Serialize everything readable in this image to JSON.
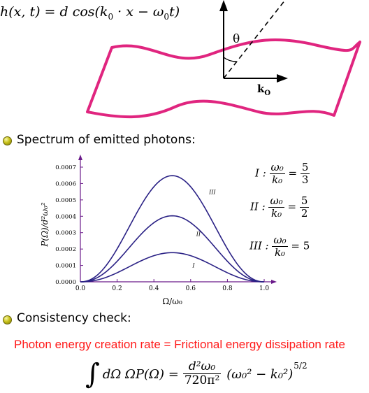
{
  "top_equation": {
    "lhs": "h(x, t) = d cos(k",
    "sub": "0",
    "rest": " · x − ω",
    "sub2": "0",
    "tail": "t)"
  },
  "sheet_diagram": {
    "theta_label": "θ",
    "k0_label": "k",
    "k0_sub": "O",
    "sheet_color": "#e0257f"
  },
  "section1": {
    "label": "Spectrum of emitted photons:"
  },
  "chart_data": {
    "type": "line",
    "xlabel": "Ω/ω₀",
    "ylabel": "P(Ω)/d²ω₀²",
    "xlim": [
      0.0,
      1.0
    ],
    "ylim": [
      0.0,
      0.0007
    ],
    "xticks": [
      "0.0",
      "0.2",
      "0.4",
      "0.6",
      "0.8",
      "1.0"
    ],
    "yticks": [
      "0.0000",
      "0.0001",
      "0.0002",
      "0.0003",
      "0.0004",
      "0.0005",
      "0.0006",
      "0.0007"
    ],
    "series": [
      {
        "name": "I",
        "peak": 0.000178
      },
      {
        "name": "II",
        "peak": 0.000403
      },
      {
        "name": "III",
        "peak": 0.000648
      }
    ],
    "line_color": "#2a2185",
    "axis_color": "#6a1a8a"
  },
  "legend_formulas": [
    {
      "roman": "I",
      "num": "ω₀",
      "den": "k₀",
      "value": "5",
      "value_den": "3"
    },
    {
      "roman": "II",
      "num": "ω₀",
      "den": "k₀",
      "value": "5",
      "value_den": "2"
    },
    {
      "roman": "III",
      "num": "ω₀",
      "den": "k₀",
      "value": "5",
      "value_den": ""
    }
  ],
  "section2": {
    "label": "Consistency check:"
  },
  "red_statement": "Photon energy creation rate = Frictional energy dissipation rate",
  "bottom_equation": {
    "integral": "∫",
    "integrand": "dΩ ΩP(Ω) =",
    "frac_num": "d²ω₀",
    "frac_den": "720π²",
    "tail": "(ω₀² − k₀²)",
    "exponent": "5/2"
  }
}
